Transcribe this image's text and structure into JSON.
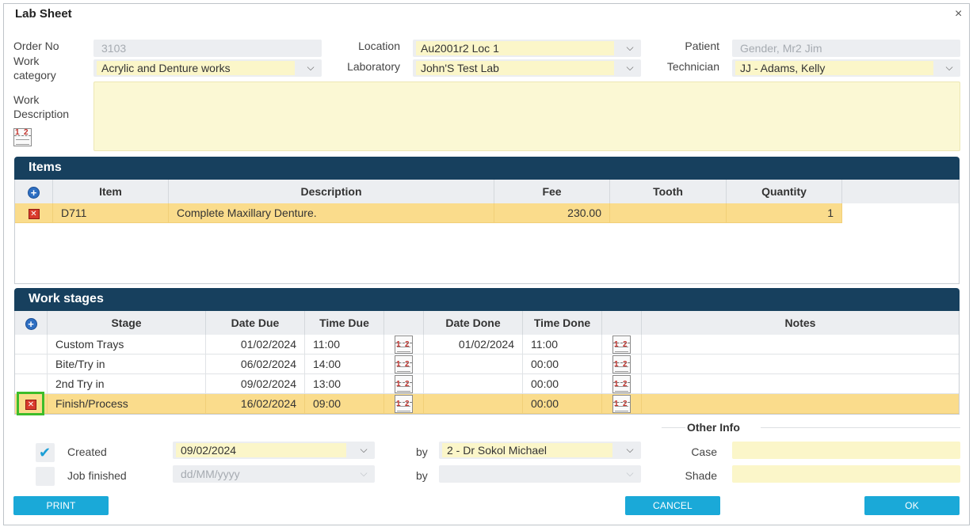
{
  "dialog": {
    "title": "Lab Sheet",
    "close_glyph": "×"
  },
  "header": {
    "order_no_label": "Order No",
    "order_no_value": "3103",
    "work_category_label_1": "Work",
    "work_category_label_2": "category",
    "work_category_value": "Acrylic and Denture works",
    "location_label": "Location",
    "location_value": "Au2001r2 Loc 1",
    "laboratory_label": "Laboratory",
    "laboratory_value": "John'S Test Lab",
    "patient_label": "Patient",
    "patient_value": "Gender, Mr2 Jim",
    "technician_label": "Technician",
    "technician_value": "JJ - Adams, Kelly",
    "work_description_label_1": "Work",
    "work_description_label_2": "Description",
    "work_description_value": ""
  },
  "items": {
    "title": "Items",
    "columns": [
      "Item",
      "Description",
      "Fee",
      "Tooth",
      "Quantity"
    ],
    "rows": [
      {
        "item": "D711",
        "description": "Complete Maxillary Denture.",
        "fee": "230.00",
        "tooth": "",
        "quantity": "1"
      }
    ]
  },
  "work_stages": {
    "title": "Work stages",
    "columns": [
      "Stage",
      "Date Due",
      "Time Due",
      "Date Done",
      "Time Done",
      "Notes"
    ],
    "rows": [
      {
        "stage": "Custom Trays",
        "date_due": "01/02/2024",
        "time_due": "11:00",
        "date_done": "01/02/2024",
        "time_done": "11:00",
        "notes": ""
      },
      {
        "stage": "Bite/Try in",
        "date_due": "06/02/2024",
        "time_due": "14:00",
        "date_done": "",
        "time_done": "00:00",
        "notes": ""
      },
      {
        "stage": "2nd Try in",
        "date_due": "09/02/2024",
        "time_due": "13:00",
        "date_done": "",
        "time_done": "00:00",
        "notes": ""
      },
      {
        "stage": "Finish/Process",
        "date_due": "16/02/2024",
        "time_due": "09:00",
        "date_done": "",
        "time_done": "00:00",
        "notes": ""
      }
    ]
  },
  "footer": {
    "created_label": "Created",
    "created_checked": true,
    "created_date": "09/02/2024",
    "created_by_label": "by",
    "created_by_value": "2 - Dr Sokol Michael",
    "job_finished_label": "Job finished",
    "job_finished_checked": false,
    "job_finished_placeholder": "dd/MM/yyyy",
    "job_finished_by_label": "by",
    "job_finished_by_value": "",
    "other_info_title": "Other Info",
    "case_label": "Case",
    "case_value": "",
    "shade_label": "Shade",
    "shade_value": ""
  },
  "buttons": {
    "print": "PRINT",
    "cancel": "CANCEL",
    "ok": "OK"
  },
  "icons": {
    "add": "add-circle-icon",
    "delete": "delete-x-icon",
    "calendar": "calendar-icon",
    "chevron": "chevron-down-icon",
    "check": "checkmark-icon"
  },
  "colors": {
    "header_bar": "#17405e",
    "selected_row": "#fadc8c",
    "highlight_field": "#fbf6c9",
    "button": "#1aa9d8",
    "focus_outline": "#3dbd2a"
  }
}
